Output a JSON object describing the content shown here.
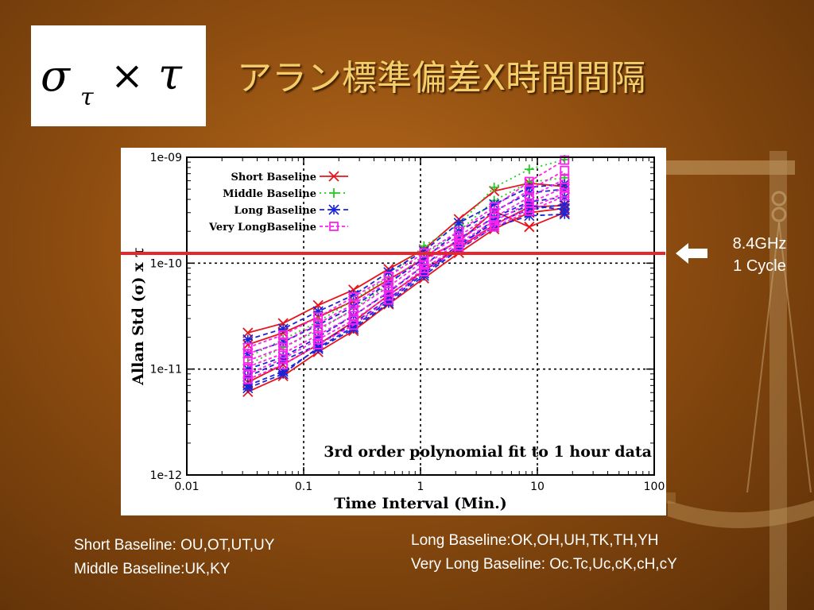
{
  "slide": {
    "title": "アラン標準偏差X時間間隔",
    "formula": {
      "sigma": "σ",
      "subscript": "τ",
      "times": "×",
      "tau": "τ"
    }
  },
  "reference_line": {
    "label_line1": "8.4GHz",
    "label_line2": "1 Cycle",
    "value": 1.2e-10,
    "color": "#e8262a"
  },
  "notes": {
    "short": "Short Baseline: OU,OT,UT,UY",
    "middle": "Middle Baseline:UK,KY",
    "long": "Long Baseline:OK,OH,UH,TK,TH,YH",
    "very_long": "Very Long Baseline: Oc.Tc,Uc,cK,cH,cY"
  },
  "chart_data": {
    "type": "line",
    "xlabel": "Time Interval (Min.)",
    "ylabel": "Allan Std (σ) x τ",
    "annotation": "3rd order polynomial fit to 1 hour data",
    "x_scale": "log",
    "y_scale": "log",
    "xlim": [
      0.01,
      100
    ],
    "ylim": [
      1e-12,
      1e-09
    ],
    "grid": true,
    "legend_position": "top-left",
    "x_ticks": [
      {
        "value": 0.01,
        "label": "0.01"
      },
      {
        "value": 0.1,
        "label": "0.1"
      },
      {
        "value": 1,
        "label": "1"
      },
      {
        "value": 10,
        "label": "10"
      },
      {
        "value": 100,
        "label": "100"
      }
    ],
    "y_ticks": [
      {
        "value": 1e-12,
        "label": "1e-12"
      },
      {
        "value": 1e-11,
        "label": "1e-11"
      },
      {
        "value": 1e-10,
        "label": "1e-10"
      },
      {
        "value": 1e-09,
        "label": "1e-09"
      }
    ],
    "x": [
      0.0333,
      0.0667,
      0.133,
      0.267,
      0.533,
      1.07,
      2.13,
      4.27,
      8.53,
      17.1
    ],
    "series": [
      {
        "name": "Short Baseline",
        "color": "#e8141c",
        "marker": "x",
        "dash": "",
        "lines": [
          [
            2.2e-11,
            2.7e-11,
            4e-11,
            5.6e-11,
            8.8e-11,
            1.35e-10,
            2.6e-10,
            4.8e-10,
            5.7e-10,
            5.3e-10
          ],
          [
            1.7e-11,
            2.2e-11,
            3.1e-11,
            4.4e-11,
            7e-11,
            1.1e-10,
            1.6e-10,
            3.1e-10,
            2.2e-10,
            3e-10
          ],
          [
            7.5e-12,
            1.1e-11,
            1.7e-11,
            2.8e-11,
            5e-11,
            8.5e-11,
            1.4e-10,
            2.3e-10,
            3.4e-10,
            3.5e-10
          ],
          [
            6.1e-12,
            8.6e-12,
            1.45e-11,
            2.3e-11,
            4.1e-11,
            7.2e-11,
            1.25e-10,
            2.1e-10,
            3e-10,
            3.3e-10
          ]
        ]
      },
      {
        "name": "Middle Baseline",
        "color": "#22cc22",
        "marker": "+",
        "dash": "2,4",
        "lines": [
          [
            1.3e-11,
            1.9e-11,
            2.8e-11,
            4.5e-11,
            7.4e-11,
            1.45e-10,
            2.3e-10,
            5.2e-10,
            7.7e-10,
            9.5e-10
          ],
          [
            1.1e-11,
            1.6e-11,
            2.3e-11,
            3.7e-11,
            6.3e-11,
            1.2e-10,
            2e-10,
            3.9e-10,
            5.8e-10,
            6.4e-10
          ]
        ]
      },
      {
        "name": "Long Baseline",
        "color": "#1a24d8",
        "marker": "*",
        "dash": "6,4",
        "lines": [
          [
            1.9e-11,
            2.4e-11,
            3.5e-11,
            5e-11,
            8.2e-11,
            1.3e-10,
            2.4e-10,
            3.6e-10,
            5.2e-10,
            5.6e-10
          ],
          [
            1.4e-11,
            1.8e-11,
            2.6e-11,
            3.9e-11,
            6.5e-11,
            1.1e-10,
            2e-10,
            3.1e-10,
            4.6e-10,
            5e-10
          ],
          [
            1e-11,
            1.3e-11,
            2e-11,
            3.2e-11,
            5.3e-11,
            9.5e-11,
            1.7e-10,
            2.7e-10,
            3.8e-10,
            4.2e-10
          ],
          [
            8.5e-12,
            1.2e-11,
            1.7e-11,
            2.7e-11,
            4.6e-11,
            8.3e-11,
            1.5e-10,
            2.4e-10,
            3.2e-10,
            3.6e-10
          ],
          [
            7e-12,
            9.5e-12,
            1.55e-11,
            2.4e-11,
            4.2e-11,
            7.6e-11,
            1.35e-10,
            2.2e-10,
            2.8e-10,
            2.9e-10
          ],
          [
            6.6e-12,
            9e-12,
            1.6e-11,
            2.5e-11,
            4.4e-11,
            8e-11,
            1.4e-10,
            2.6e-10,
            3.5e-10,
            3.2e-10
          ]
        ]
      },
      {
        "name": "Very LongBaseline",
        "color": "#ff22ee",
        "marker": "square",
        "dash": "4,3",
        "lines": [
          [
            1.6e-11,
            2.1e-11,
            3.1e-11,
            4.8e-11,
            7.5e-11,
            1.25e-10,
            2e-10,
            3.4e-10,
            5.9e-10,
            9.4e-10
          ],
          [
            1.4e-11,
            1.8e-11,
            2.7e-11,
            4.1e-11,
            6.7e-11,
            1.15e-10,
            1.8e-10,
            3e-10,
            4.9e-10,
            7.5e-10
          ],
          [
            1.2e-11,
            1.6e-11,
            2.4e-11,
            3.6e-11,
            6e-11,
            1.05e-10,
            1.65e-10,
            2.7e-10,
            4.2e-10,
            6.2e-10
          ],
          [
            1.05e-11,
            1.4e-11,
            2.1e-11,
            3.2e-11,
            5.4e-11,
            9.6e-11,
            1.55e-10,
            2.5e-10,
            3.7e-10,
            5.2e-10
          ],
          [
            9e-12,
            1.25e-11,
            1.9e-11,
            2.9e-11,
            4.9e-11,
            8.9e-11,
            1.45e-10,
            2.3e-10,
            3.3e-10,
            4.6e-10
          ],
          [
            8e-12,
            1.1e-11,
            1.7e-11,
            2.6e-11,
            4.5e-11,
            8.3e-11,
            1.38e-10,
            2.2e-10,
            3.1e-10,
            4.3e-10
          ]
        ]
      }
    ]
  }
}
